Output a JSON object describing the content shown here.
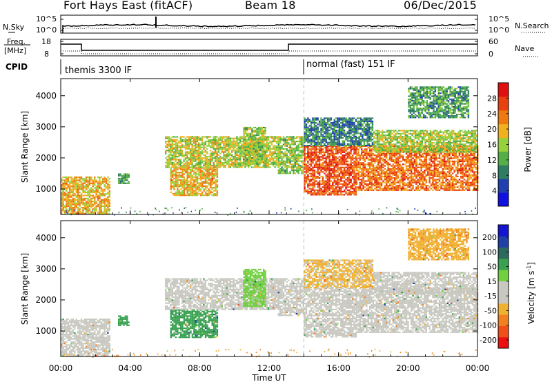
{
  "header": {
    "station": "Fort Hays East (fitACF)",
    "beam": "Beam 18",
    "date": "06/Dec/2015"
  },
  "strip": {
    "nsky_label": "N.Sky",
    "nsearch_label": "N.Search",
    "noise_ticks": [
      "10^5",
      "10^0"
    ],
    "freq_label": "Freq.",
    "freq_unit": "[MHz]",
    "freq_ticks": [
      "18",
      "8"
    ],
    "nave_label": "Nave",
    "nave_ticks": [
      "60",
      "0"
    ],
    "cpid_label": "CPID",
    "cpid_segments": [
      {
        "start_hour": 0,
        "end_hour": 14,
        "label": "themis 3300 IF"
      },
      {
        "start_hour": 14,
        "end_hour": 24,
        "label": "normal (fast) 151 IF"
      }
    ]
  },
  "colors": {
    "power_scale": [
      "#1010e0",
      "#2040b0",
      "#2e7c62",
      "#52b046",
      "#96d03a",
      "#f0b020",
      "#f07810",
      "#e84010",
      "#e01010"
    ],
    "velocity_scale": [
      "#ee1010",
      "#f05018",
      "#f08020",
      "#f0b030",
      "#c8c8c0",
      "#c8c8c0",
      "#70d040",
      "#38a050",
      "#2c6a60",
      "#2040a8",
      "#1515d0"
    ]
  },
  "chart_data": [
    {
      "type": "heatmap",
      "panel": "power",
      "x_unit": "Time UT (hours)",
      "xlim": [
        0,
        24
      ],
      "x_ticks": [
        "00:00",
        "04:00",
        "08:00",
        "12:00",
        "16:00",
        "20:00",
        "00:00"
      ],
      "ylabel": "Slant Range [km]",
      "ylim": [
        180,
        4550
      ],
      "y_ticks": [
        1000,
        2000,
        3000,
        4000
      ],
      "colorbar_label": "Power [dB]",
      "colorbar_ticks": [
        4,
        8,
        12,
        16,
        20,
        24,
        28
      ],
      "marker_hour": 14,
      "regions": [
        {
          "t0": 0.0,
          "t1": 2.8,
          "r0": 220,
          "r1": 1400,
          "level": 20
        },
        {
          "t0": 3.3,
          "t1": 3.9,
          "r0": 1200,
          "r1": 1500,
          "level": 11
        },
        {
          "t0": 6.3,
          "t1": 9.0,
          "r0": 800,
          "r1": 1700,
          "level": 20
        },
        {
          "t0": 6.0,
          "t1": 12.5,
          "r0": 1700,
          "r1": 2700,
          "level": 17
        },
        {
          "t0": 10.5,
          "t1": 11.8,
          "r0": 1800,
          "r1": 3000,
          "level": 15
        },
        {
          "t0": 12.5,
          "t1": 14.0,
          "r0": 1500,
          "r1": 2700,
          "level": 15
        },
        {
          "t0": 14.0,
          "t1": 17.0,
          "r0": 800,
          "r1": 2400,
          "level": 26
        },
        {
          "t0": 17.0,
          "t1": 24.0,
          "r0": 950,
          "r1": 2400,
          "level": 24
        },
        {
          "t0": 18.0,
          "t1": 24.0,
          "r0": 2200,
          "r1": 2900,
          "level": 16
        },
        {
          "t0": 14.0,
          "t1": 18.0,
          "r0": 2400,
          "r1": 3300,
          "level": 9
        },
        {
          "t0": 20.0,
          "t1": 23.5,
          "r0": 3300,
          "r1": 4300,
          "level": 11
        }
      ]
    },
    {
      "type": "heatmap",
      "panel": "velocity",
      "x_unit": "Time UT (hours)",
      "xlim": [
        0,
        24
      ],
      "x_ticks": [
        "00:00",
        "04:00",
        "08:00",
        "12:00",
        "16:00",
        "20:00",
        "00:00"
      ],
      "xlabel": "Time UT",
      "ylabel": "Slant Range [km]",
      "ylim": [
        180,
        4550
      ],
      "y_ticks": [
        1000,
        2000,
        3000,
        4000
      ],
      "colorbar_label": "Velocity [m s^-1]",
      "colorbar_ticks": [
        200,
        100,
        50,
        15,
        -15,
        -50,
        -100,
        -200
      ],
      "marker_hour": 14,
      "regions": [
        {
          "t0": 0.0,
          "t1": 2.8,
          "r0": 220,
          "r1": 1400,
          "level": 0
        },
        {
          "t0": 3.3,
          "t1": 3.9,
          "r0": 1200,
          "r1": 1500,
          "level": 70
        },
        {
          "t0": 6.3,
          "t1": 9.0,
          "r0": 800,
          "r1": 1700,
          "level": 70
        },
        {
          "t0": 6.0,
          "t1": 12.5,
          "r0": 1700,
          "r1": 2700,
          "level": 0
        },
        {
          "t0": 10.5,
          "t1": 11.8,
          "r0": 1800,
          "r1": 3000,
          "level": 30
        },
        {
          "t0": 12.5,
          "t1": 14.0,
          "r0": 1500,
          "r1": 2700,
          "level": 0
        },
        {
          "t0": 14.0,
          "t1": 17.0,
          "r0": 800,
          "r1": 2400,
          "level": 0
        },
        {
          "t0": 17.0,
          "t1": 24.0,
          "r0": 950,
          "r1": 2400,
          "level": 0
        },
        {
          "t0": 18.0,
          "t1": 24.0,
          "r0": 2200,
          "r1": 2900,
          "level": 0
        },
        {
          "t0": 14.0,
          "t1": 18.0,
          "r0": 2400,
          "r1": 3300,
          "level": -20
        },
        {
          "t0": 20.0,
          "t1": 23.5,
          "r0": 3300,
          "r1": 4300,
          "level": -40
        }
      ]
    }
  ]
}
